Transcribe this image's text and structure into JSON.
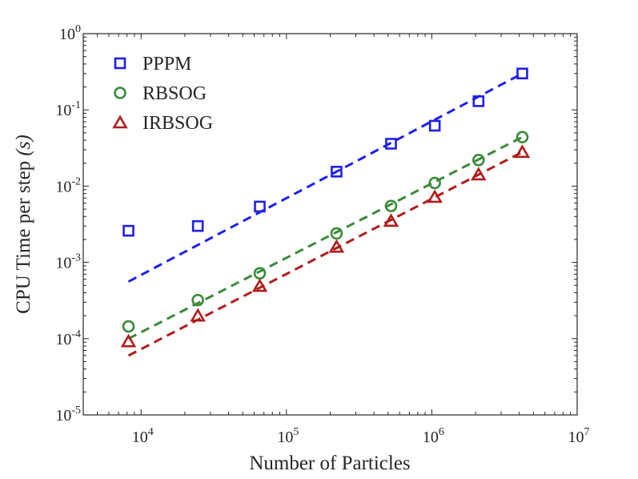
{
  "chart_data": {
    "type": "scatter",
    "xlabel": "Number of Particles",
    "ylabel": "CPU Time per step (s)",
    "ylabel_parts": {
      "text": "CPU Time per step ",
      "unit": "(s)"
    },
    "xscale": "log",
    "yscale": "log",
    "xlim": [
      4000,
      10000000
    ],
    "ylim": [
      1e-05,
      1
    ],
    "x_ticks": [
      10000,
      100000,
      1000000,
      10000000
    ],
    "x_tick_labels": [
      {
        "base": "10",
        "exp": "4"
      },
      {
        "base": "10",
        "exp": "5"
      },
      {
        "base": "10",
        "exp": "6"
      },
      {
        "base": "10",
        "exp": "7"
      }
    ],
    "y_ticks": [
      1e-05,
      0.0001,
      0.001,
      0.01,
      0.1,
      1
    ],
    "y_tick_labels": [
      {
        "base": "10",
        "exp": "-5"
      },
      {
        "base": "10",
        "exp": "-4"
      },
      {
        "base": "10",
        "exp": "-3"
      },
      {
        "base": "10",
        "exp": "-2"
      },
      {
        "base": "10",
        "exp": "-1"
      },
      {
        "base": "10",
        "exp": "0"
      }
    ],
    "grid": false,
    "legend_position": "top-left",
    "series": [
      {
        "name": "PPPM",
        "marker": "square",
        "color": "#1f1fe6",
        "x": [
          8192,
          24576,
          65536,
          221184,
          524288,
          1048576,
          2097152,
          4194304
        ],
        "y": [
          0.0026,
          0.003,
          0.0054,
          0.0155,
          0.036,
          0.062,
          0.13,
          0.3
        ],
        "fit": {
          "x": [
            8192,
            4194304
          ],
          "y": [
            0.00056,
            0.3
          ]
        }
      },
      {
        "name": "RBSOG",
        "marker": "circle",
        "color": "#3a8a3a",
        "x": [
          8192,
          24576,
          65536,
          221184,
          524288,
          1048576,
          2097152,
          4194304
        ],
        "y": [
          0.000145,
          0.00032,
          0.00072,
          0.0024,
          0.0055,
          0.011,
          0.022,
          0.044
        ],
        "fit": {
          "x": [
            8192,
            4194304
          ],
          "y": [
            0.0001,
            0.044
          ]
        }
      },
      {
        "name": "IRBSOG",
        "marker": "triangle",
        "color": "#b01c1c",
        "x": [
          8192,
          24576,
          65536,
          221184,
          524288,
          1048576,
          2097152,
          4194304
        ],
        "y": [
          9.2e-05,
          0.0002,
          0.00049,
          0.0016,
          0.0035,
          0.0072,
          0.0142,
          0.028
        ],
        "fit": {
          "x": [
            8192,
            4194304
          ],
          "y": [
            6e-05,
            0.028
          ]
        }
      }
    ]
  }
}
